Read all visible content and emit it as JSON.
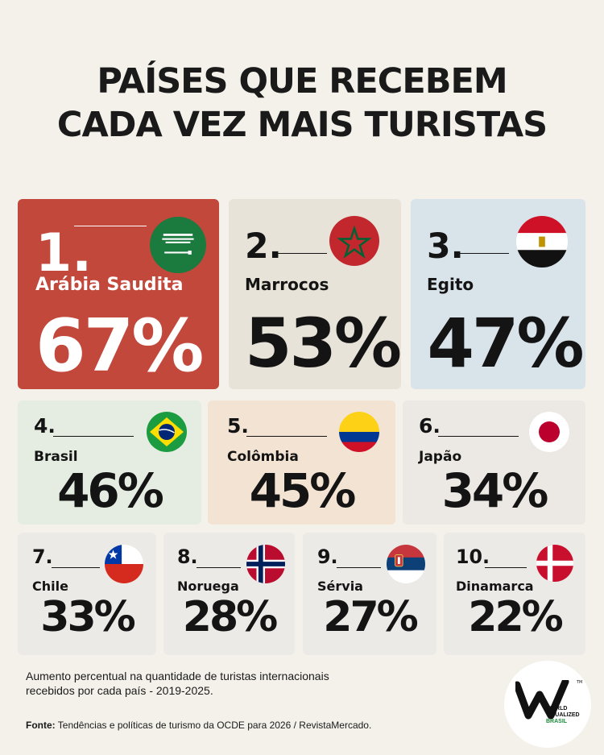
{
  "title": {
    "line1": "PAÍSES QUE RECEBEM",
    "line2": "CADA VEZ MAIS TURISTAS"
  },
  "chart_data": {
    "type": "table",
    "title": "PAÍSES QUE RECEBEM CADA VEZ MAIS TURISTAS",
    "categories": [
      "Arábia Saudita",
      "Marrocos",
      "Egito",
      "Brasil",
      "Colômbia",
      "Japão",
      "Chile",
      "Noruega",
      "Sérvia",
      "Dinamarca"
    ],
    "values": [
      67,
      53,
      47,
      46,
      45,
      34,
      33,
      28,
      27,
      22
    ],
    "unit": "%",
    "items": [
      {
        "rank": "1.",
        "name": "Arábia Saudita",
        "value": 67,
        "pct": "67%",
        "flag": "saudi-arabia-flag",
        "bg": "#c3483c"
      },
      {
        "rank": "2.",
        "name": "Marrocos",
        "value": 53,
        "pct": "53%",
        "flag": "morocco-flag",
        "bg": "#e8e3d8"
      },
      {
        "rank": "3.",
        "name": "Egito",
        "value": 47,
        "pct": "47%",
        "flag": "egypt-flag",
        "bg": "#d9e3ea"
      },
      {
        "rank": "4.",
        "name": "Brasil",
        "value": 46,
        "pct": "46%",
        "flag": "brazil-flag",
        "bg": "#e5ede2"
      },
      {
        "rank": "5.",
        "name": "Colômbia",
        "value": 45,
        "pct": "45%",
        "flag": "colombia-flag",
        "bg": "#f3e3d3"
      },
      {
        "rank": "6.",
        "name": "Japão",
        "value": 34,
        "pct": "34%",
        "flag": "japan-flag",
        "bg": "#ece8e4"
      },
      {
        "rank": "7.",
        "name": "Chile",
        "value": 33,
        "pct": "33%",
        "flag": "chile-flag",
        "bg": "#eceae6"
      },
      {
        "rank": "8.",
        "name": "Noruega",
        "value": 28,
        "pct": "28%",
        "flag": "norway-flag",
        "bg": "#eceae6"
      },
      {
        "rank": "9.",
        "name": "Sérvia",
        "value": 27,
        "pct": "27%",
        "flag": "serbia-flag",
        "bg": "#eceae6"
      },
      {
        "rank": "10.",
        "name": "Dinamarca",
        "value": 22,
        "pct": "22%",
        "flag": "denmark-flag",
        "bg": "#eceae6"
      }
    ]
  },
  "footnote": "Aumento percentual na quantidade de turistas internacionais recebidos por cada país - 2019-2025.",
  "source": {
    "label": "Fonte:",
    "text": "Tendências e políticas de turismo da OCDE para 2026 / RevistaMercado."
  },
  "logo": {
    "line1": "WORLD",
    "line2": "VISUALIZED",
    "line3": "BRASIL",
    "tm": "TM"
  },
  "colors": {
    "background": "#f4f1ea",
    "highlight": "#c3483c",
    "text": "#141414",
    "brand_green": "#1d8a3c"
  }
}
